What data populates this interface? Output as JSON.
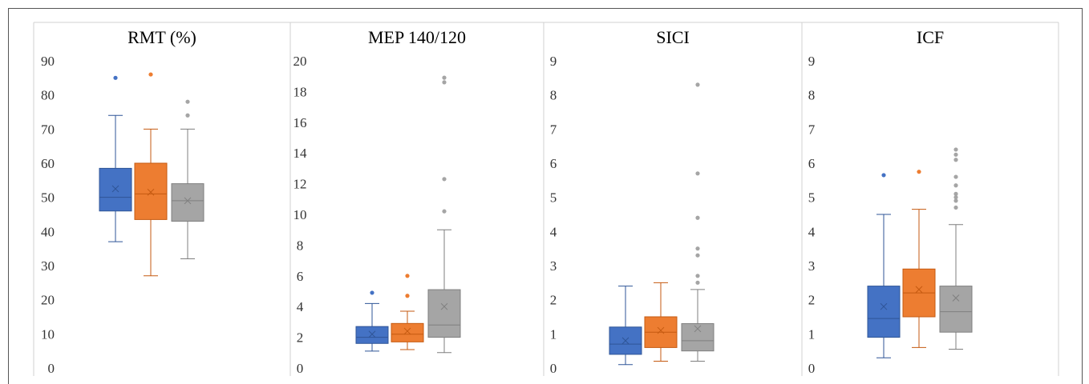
{
  "colors": {
    "blue": "#4472C4",
    "orange": "#ED7D31",
    "gray": "#A5A5A5",
    "blue_edge": "#2F5597",
    "orange_edge": "#C55A11",
    "gray_edge": "#7F7F7F"
  },
  "chart_data": [
    {
      "type": "box",
      "title": "RMT (%)",
      "ylim": [
        0,
        90
      ],
      "yticks": [
        "0",
        "10",
        "20",
        "30",
        "40",
        "50",
        "60",
        "70",
        "80",
        "90"
      ],
      "series": [
        {
          "color": "blue",
          "min": 37,
          "q1": 46,
          "median": 50,
          "q3": 58.5,
          "max": 74,
          "mean": 52.5,
          "outliers": [
            85
          ]
        },
        {
          "color": "orange",
          "min": 27,
          "q1": 43.5,
          "median": 51,
          "q3": 60,
          "max": 70,
          "mean": 51.5,
          "outliers": [
            86
          ]
        },
        {
          "color": "gray",
          "min": 32,
          "q1": 43,
          "median": 49,
          "q3": 54,
          "max": 70,
          "mean": 49,
          "outliers": [
            74,
            78
          ]
        }
      ]
    },
    {
      "type": "box",
      "title": "MEP 140/120",
      "ylim": [
        0,
        20
      ],
      "yticks": [
        "0",
        "2",
        "4",
        "6",
        "8",
        "10",
        "12",
        "14",
        "16",
        "18",
        "20"
      ],
      "series": [
        {
          "color": "blue",
          "min": 1.1,
          "q1": 1.6,
          "median": 2.0,
          "q3": 2.7,
          "max": 4.2,
          "mean": 2.2,
          "outliers": [
            4.9
          ]
        },
        {
          "color": "orange",
          "min": 1.2,
          "q1": 1.7,
          "median": 2.2,
          "q3": 2.9,
          "max": 3.7,
          "mean": 2.4,
          "outliers": [
            4.7,
            6.0
          ]
        },
        {
          "color": "gray",
          "min": 1.0,
          "q1": 2.0,
          "median": 2.8,
          "q3": 5.1,
          "max": 9.0,
          "mean": 4.0,
          "outliers": [
            10.2,
            12.3,
            18.6,
            18.9
          ]
        }
      ]
    },
    {
      "type": "box",
      "title": "SICI",
      "ylim": [
        0,
        9
      ],
      "yticks": [
        "0",
        "1",
        "2",
        "3",
        "4",
        "5",
        "6",
        "7",
        "8",
        "9"
      ],
      "series": [
        {
          "color": "blue",
          "min": 0.1,
          "q1": 0.4,
          "median": 0.7,
          "q3": 1.2,
          "max": 2.4,
          "mean": 0.8,
          "outliers": []
        },
        {
          "color": "orange",
          "min": 0.2,
          "q1": 0.6,
          "median": 1.05,
          "q3": 1.5,
          "max": 2.5,
          "mean": 1.1,
          "outliers": []
        },
        {
          "color": "gray",
          "min": 0.2,
          "q1": 0.5,
          "median": 0.8,
          "q3": 1.3,
          "max": 2.3,
          "mean": 1.15,
          "outliers": [
            2.5,
            2.7,
            3.3,
            3.5,
            4.4,
            5.7,
            8.3
          ]
        }
      ]
    },
    {
      "type": "box",
      "title": "ICF",
      "ylim": [
        0,
        9
      ],
      "yticks": [
        "0",
        "1",
        "2",
        "3",
        "4",
        "5",
        "6",
        "7",
        "8",
        "9"
      ],
      "series": [
        {
          "color": "blue",
          "min": 0.3,
          "q1": 0.9,
          "median": 1.45,
          "q3": 2.4,
          "max": 4.5,
          "mean": 1.8,
          "outliers": [
            5.65
          ]
        },
        {
          "color": "orange",
          "min": 0.6,
          "q1": 1.5,
          "median": 2.2,
          "q3": 2.9,
          "max": 4.65,
          "mean": 2.3,
          "outliers": [
            5.75
          ]
        },
        {
          "color": "gray",
          "min": 0.55,
          "q1": 1.05,
          "median": 1.65,
          "q3": 2.4,
          "max": 4.2,
          "mean": 2.05,
          "outliers": [
            4.7,
            4.9,
            5.0,
            5.1,
            5.35,
            5.6,
            6.1,
            6.25,
            6.4
          ]
        }
      ]
    }
  ]
}
